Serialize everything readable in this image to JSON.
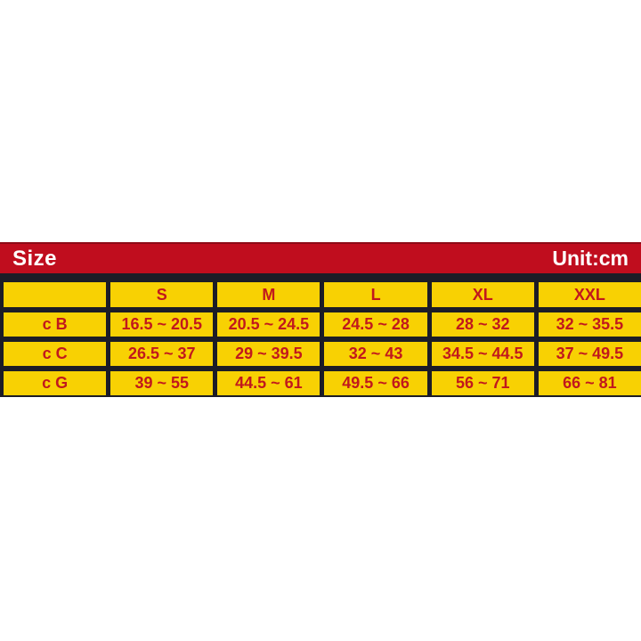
{
  "chart_data": {
    "type": "table",
    "title": "Size",
    "unit_label": "Unit:cm",
    "size_columns": [
      "S",
      "M",
      "L",
      "XL",
      "XXL"
    ],
    "rows": [
      {
        "label": "c B",
        "values": [
          "16.5 ~ 20.5",
          "20.5 ~ 24.5",
          "24.5 ~ 28",
          "28 ~ 32",
          "32 ~ 35.5"
        ]
      },
      {
        "label": "c C",
        "values": [
          "26.5 ~ 37",
          "29 ~ 39.5",
          "32 ~ 43",
          "34.5 ~ 44.5",
          "37 ~ 49.5"
        ]
      },
      {
        "label": "c G",
        "values": [
          "39 ~ 55",
          "44.5 ~ 61",
          "49.5 ~ 66",
          "56 ~ 71",
          "66 ~ 81"
        ]
      }
    ]
  },
  "colors": {
    "bar_red": "#c00d1e",
    "bar_top_edge": "#8e0a16",
    "cell_yellow": "#f8d103",
    "border_dark": "#1c1c26",
    "cell_text_red": "#c1181d",
    "bar_text_white": "#ffffff"
  }
}
